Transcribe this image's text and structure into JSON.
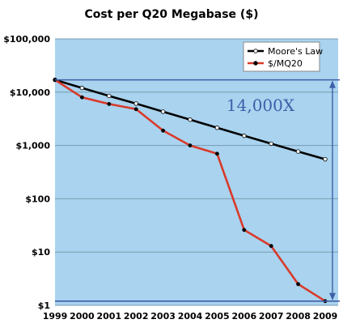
{
  "colors": {
    "plot_bg": "#a9d3ef",
    "grid": "#7a9bb0",
    "moore_line": "#000000",
    "mq20_line": "#d93a2a",
    "annotation": "#3f5fa8"
  },
  "chart_data": {
    "type": "line",
    "title": "Cost per Q20 Megabase ($)",
    "xlabel": "",
    "ylabel": "",
    "y_scale": "log",
    "ylim": [
      1,
      100000
    ],
    "grid": true,
    "legend_position": "top-right",
    "x": [
      "1999",
      "2000",
      "2001",
      "2002",
      "2003",
      "2004",
      "2005",
      "2006",
      "2007",
      "2008",
      "2009"
    ],
    "y_tick_labels": [
      "$1",
      "$10",
      "$100",
      "$1,000",
      "$10,000",
      "$100,000"
    ],
    "series": [
      {
        "name": "Moore's Law",
        "values": [
          17000,
          12000,
          8500,
          6100,
          4300,
          3050,
          2150,
          1520,
          1080,
          770,
          550
        ]
      },
      {
        "name": "$/MQ20",
        "values": [
          17000,
          8000,
          6000,
          4800,
          1900,
          1000,
          700,
          26,
          13,
          2.5,
          1.2
        ]
      }
    ],
    "annotations": [
      {
        "text": "14,000X"
      }
    ]
  }
}
